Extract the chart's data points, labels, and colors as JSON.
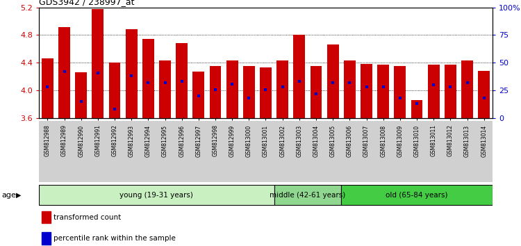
{
  "title": "GDS3942 / 238997_at",
  "samples": [
    "GSM812988",
    "GSM812989",
    "GSM812990",
    "GSM812991",
    "GSM812992",
    "GSM812993",
    "GSM812994",
    "GSM812995",
    "GSM812996",
    "GSM812997",
    "GSM812998",
    "GSM812999",
    "GSM813000",
    "GSM813001",
    "GSM813002",
    "GSM813003",
    "GSM813004",
    "GSM813005",
    "GSM813006",
    "GSM813007",
    "GSM813008",
    "GSM813009",
    "GSM813010",
    "GSM813011",
    "GSM813012",
    "GSM813013",
    "GSM813014"
  ],
  "transformed_count": [
    4.46,
    4.91,
    4.26,
    5.18,
    4.4,
    4.88,
    4.74,
    4.43,
    4.68,
    4.27,
    4.35,
    4.43,
    4.35,
    4.33,
    4.43,
    4.8,
    4.35,
    4.66,
    4.43,
    4.38,
    4.37,
    4.35,
    3.86,
    4.37,
    4.37,
    4.43,
    4.28
  ],
  "percentile_rank": [
    28,
    42,
    15,
    41,
    8,
    38,
    32,
    32,
    33,
    20,
    26,
    31,
    18,
    26,
    28,
    33,
    22,
    32,
    32,
    28,
    28,
    18,
    13,
    30,
    28,
    32,
    18
  ],
  "ylim_left": [
    3.6,
    5.2
  ],
  "ylim_right": [
    0,
    100
  ],
  "yticks_left": [
    3.6,
    4.0,
    4.4,
    4.8,
    5.2
  ],
  "yticks_right": [
    0,
    25,
    50,
    75,
    100
  ],
  "ytick_labels_right": [
    "0",
    "25",
    "50",
    "75",
    "100%"
  ],
  "bar_color": "#cc0000",
  "percentile_color": "#0000cc",
  "bar_bottom": 3.6,
  "groups": [
    {
      "label": "young (19-31 years)",
      "start": 0,
      "end": 14,
      "color": "#c8f0c0"
    },
    {
      "label": "middle (42-61 years)",
      "start": 14,
      "end": 18,
      "color": "#90d890"
    },
    {
      "label": "old (65-84 years)",
      "start": 18,
      "end": 27,
      "color": "#44cc44"
    }
  ],
  "age_label": "age",
  "legend_items": [
    {
      "color": "#cc0000",
      "label": "transformed count"
    },
    {
      "color": "#0000cc",
      "label": "percentile rank within the sample"
    }
  ],
  "background_color": "#ffffff",
  "tick_label_color_left": "#cc0000",
  "tick_label_color_right": "#0000cc",
  "xticklabel_bg": "#d0d0d0"
}
